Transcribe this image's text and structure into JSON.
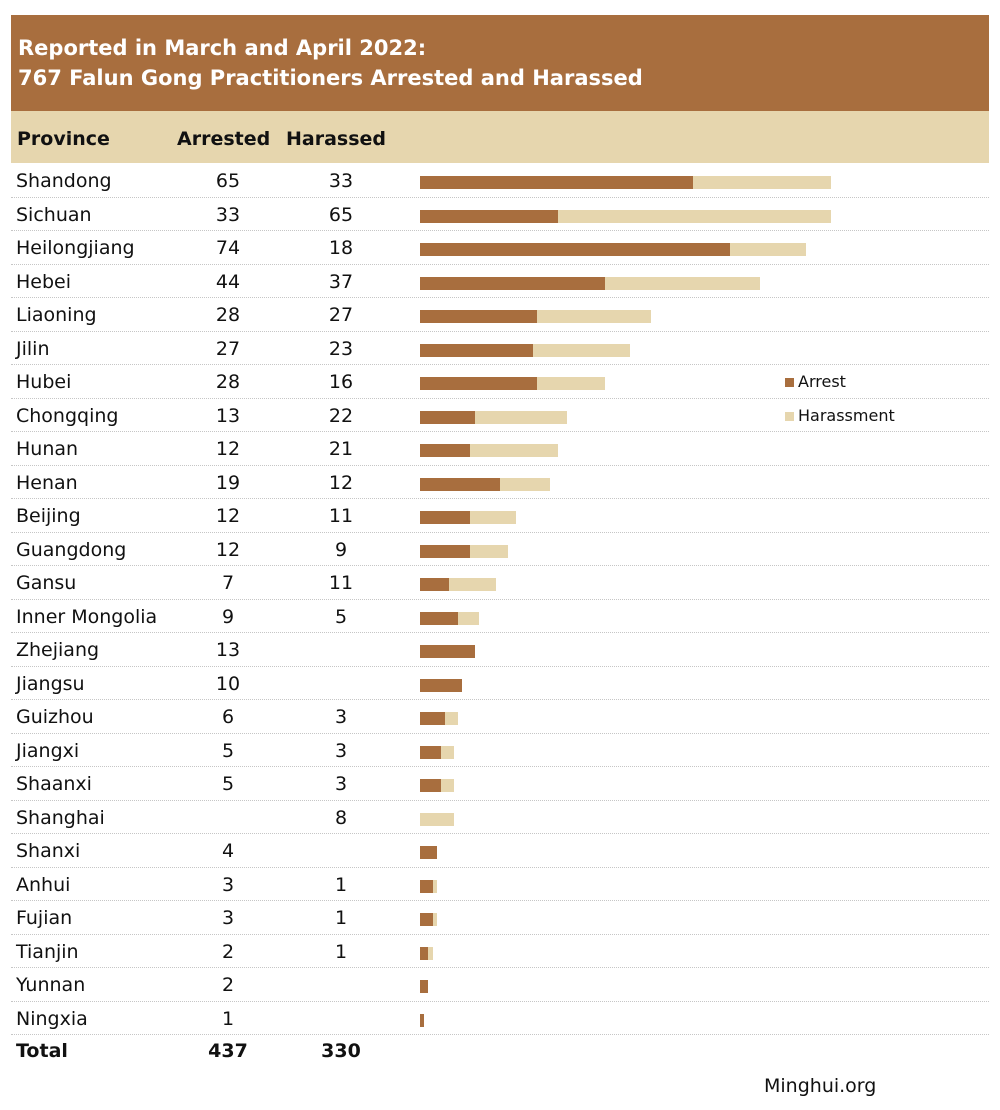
{
  "title": {
    "line1": "Reported in March and April 2022:",
    "line2": "767 Falun Gong Practitioners Arrested and Harassed"
  },
  "table": {
    "headers": {
      "province": "Province",
      "arrested": "Arrested",
      "harassed": "Harassed"
    },
    "total": {
      "label": "Total",
      "arrested": "437",
      "harassed": "330"
    }
  },
  "legend": {
    "arrest": "Arrest",
    "harassment": "Harassment"
  },
  "source": "Minghui.org",
  "colors": {
    "arrest": "#a86e3e",
    "harassment": "#e6d6ae",
    "title_bg": "#a86e3e"
  },
  "chart_data": {
    "type": "bar",
    "orientation": "horizontal",
    "stacked": true,
    "title": "Reported in March and April 2022: 767 Falun Gong Practitioners Arrested and Harassed",
    "categories": [
      "Shandong",
      "Sichuan",
      "Heilongjiang",
      "Hebei",
      "Liaoning",
      "Jilin",
      "Hubei",
      "Chongqing",
      "Hunan",
      "Henan",
      "Beijing",
      "Guangdong",
      "Gansu",
      "Inner Mongolia",
      "Zhejiang",
      "Jiangsu",
      "Guizhou",
      "Jiangxi",
      "Shaanxi",
      "Shanghai",
      "Shanxi",
      "Anhui",
      "Fujian",
      "Tianjin",
      "Yunnan",
      "Ningxia"
    ],
    "series": [
      {
        "name": "Arrest",
        "values": [
          65,
          33,
          74,
          44,
          28,
          27,
          28,
          13,
          12,
          19,
          12,
          12,
          7,
          9,
          13,
          10,
          6,
          5,
          5,
          null,
          4,
          3,
          3,
          2,
          2,
          1
        ]
      },
      {
        "name": "Harassment",
        "values": [
          33,
          65,
          18,
          37,
          27,
          23,
          16,
          22,
          21,
          12,
          11,
          9,
          11,
          5,
          null,
          null,
          3,
          3,
          3,
          8,
          null,
          1,
          1,
          1,
          null,
          null
        ]
      }
    ],
    "legend_position": "right",
    "grid": false
  }
}
